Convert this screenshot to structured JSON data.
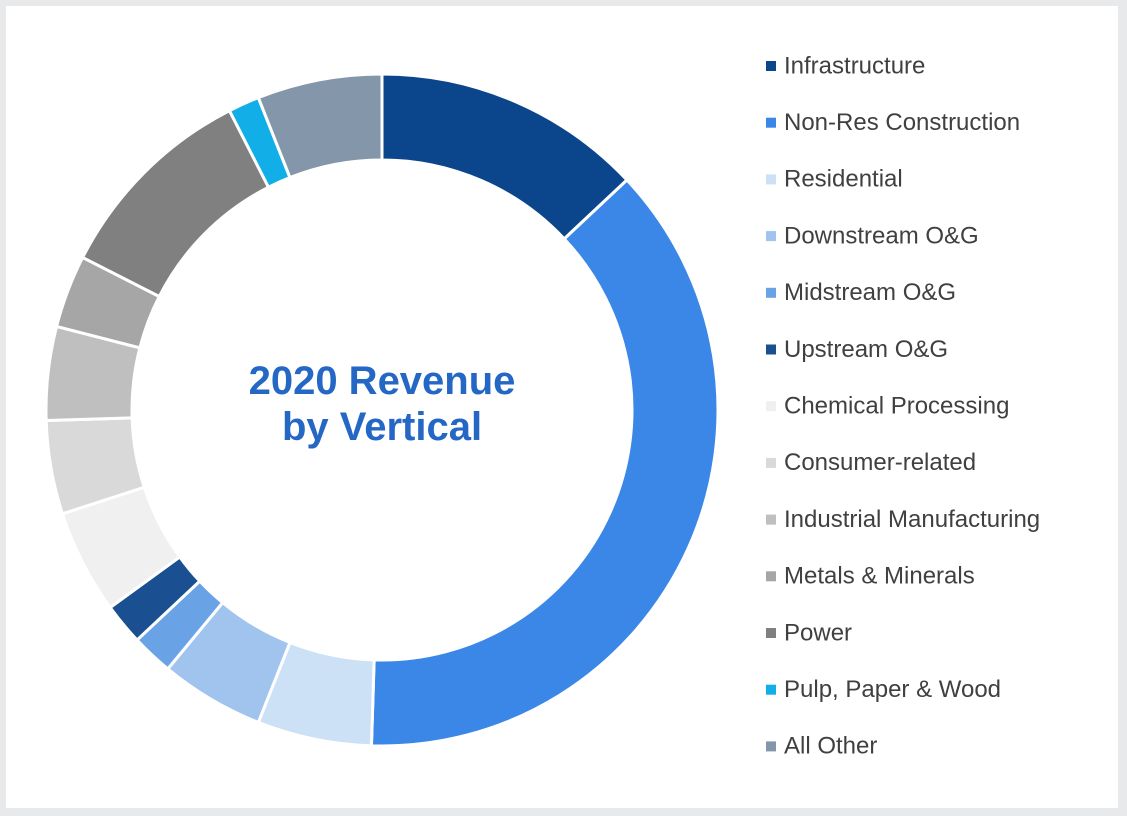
{
  "chart_data": {
    "type": "donut",
    "title": "2020 Revenue by Vertical",
    "categories": [
      "Infrastructure",
      "Non-Res Construction",
      "Residential",
      "Downstream O&G",
      "Midstream O&G",
      "Upstream O&G",
      "Chemical Processing",
      "Consumer-related",
      "Industrial Manufacturing",
      "Metals & Minerals",
      "Power",
      "Pulp, Paper & Wood",
      "All Other"
    ],
    "values": [
      13,
      37.5,
      5.5,
      5,
      2,
      2,
      5,
      4.5,
      4.5,
      3.5,
      10,
      1.5,
      6
    ],
    "colors": [
      "#0b468c",
      "#3a87e8",
      "#cce0f6",
      "#a0c4ee",
      "#6aa2e6",
      "#1a4f91",
      "#f0f0f0",
      "#d9d9d9",
      "#bfbfbf",
      "#a6a6a6",
      "#808080",
      "#12aee8",
      "#8496aa"
    ],
    "legend": "right"
  }
}
